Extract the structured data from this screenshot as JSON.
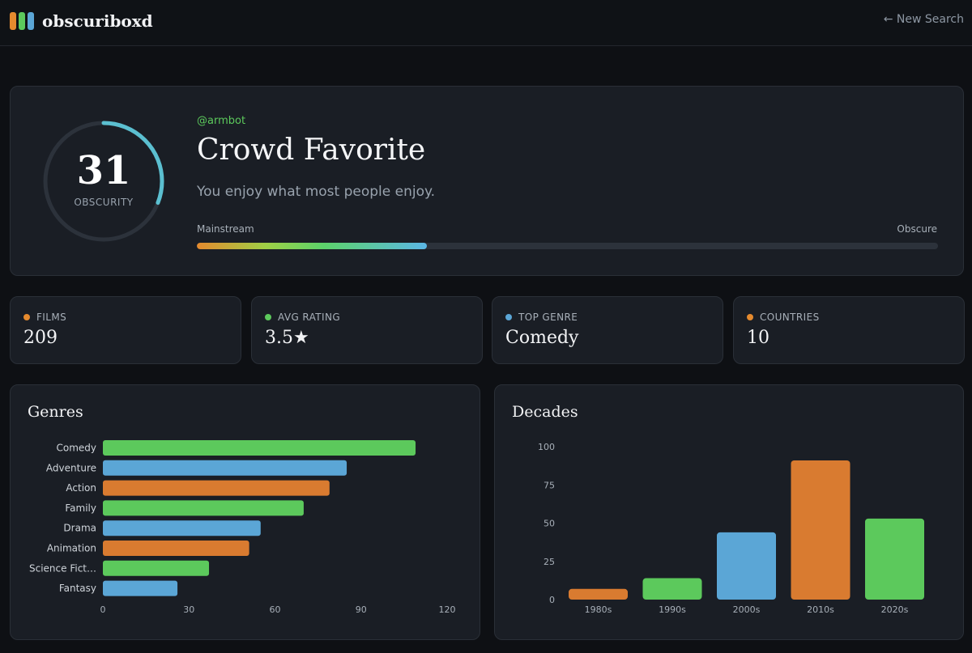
{
  "app": {
    "name": "obscuriboxd",
    "new_search_label": "← New Search",
    "logo_colors": [
      "#e58a2e",
      "#5cc95c",
      "#5ba6d6"
    ]
  },
  "hero": {
    "score": "31",
    "score_value": 31,
    "score_max": 100,
    "score_label": "OBSCURITY",
    "handle": "@armbot",
    "title": "Crowd Favorite",
    "subtitle": "You enjoy what most people enjoy.",
    "scale_left": "Mainstream",
    "scale_right": "Obscure",
    "progress_fraction": 0.31
  },
  "stats": [
    {
      "label": "FILMS",
      "value": "209",
      "color": "#e58a2e"
    },
    {
      "label": "AVG RATING",
      "value": "3.5★",
      "color": "#5cc95c"
    },
    {
      "label": "TOP GENRE",
      "value": "Comedy",
      "color": "#5ba6d6"
    },
    {
      "label": "COUNTRIES",
      "value": "10",
      "color": "#e58a2e"
    }
  ],
  "chart_data": [
    {
      "type": "bar",
      "orientation": "horizontal",
      "title": "Genres",
      "categories": [
        "Comedy",
        "Adventure",
        "Action",
        "Family",
        "Drama",
        "Animation",
        "Science Fict…",
        "Fantasy"
      ],
      "values": [
        109,
        85,
        79,
        70,
        55,
        51,
        37,
        26
      ],
      "colors": [
        "#5cc95c",
        "#5ba6d6",
        "#d97b30",
        "#5cc95c",
        "#5ba6d6",
        "#d97b30",
        "#5cc95c",
        "#5ba6d6"
      ],
      "xlim": [
        0,
        120
      ],
      "xticks": [
        0,
        30,
        60,
        90,
        120
      ],
      "xlabel": "",
      "ylabel": ""
    },
    {
      "type": "bar",
      "orientation": "vertical",
      "title": "Decades",
      "categories": [
        "1980s",
        "1990s",
        "2000s",
        "2010s",
        "2020s"
      ],
      "values": [
        7,
        14,
        44,
        91,
        53
      ],
      "colors": [
        "#d97b30",
        "#5cc95c",
        "#5ba6d6",
        "#d97b30",
        "#5cc95c"
      ],
      "ylim": [
        0,
        100
      ],
      "yticks": [
        0,
        25,
        50,
        75,
        100
      ],
      "xlabel": "",
      "ylabel": ""
    }
  ]
}
